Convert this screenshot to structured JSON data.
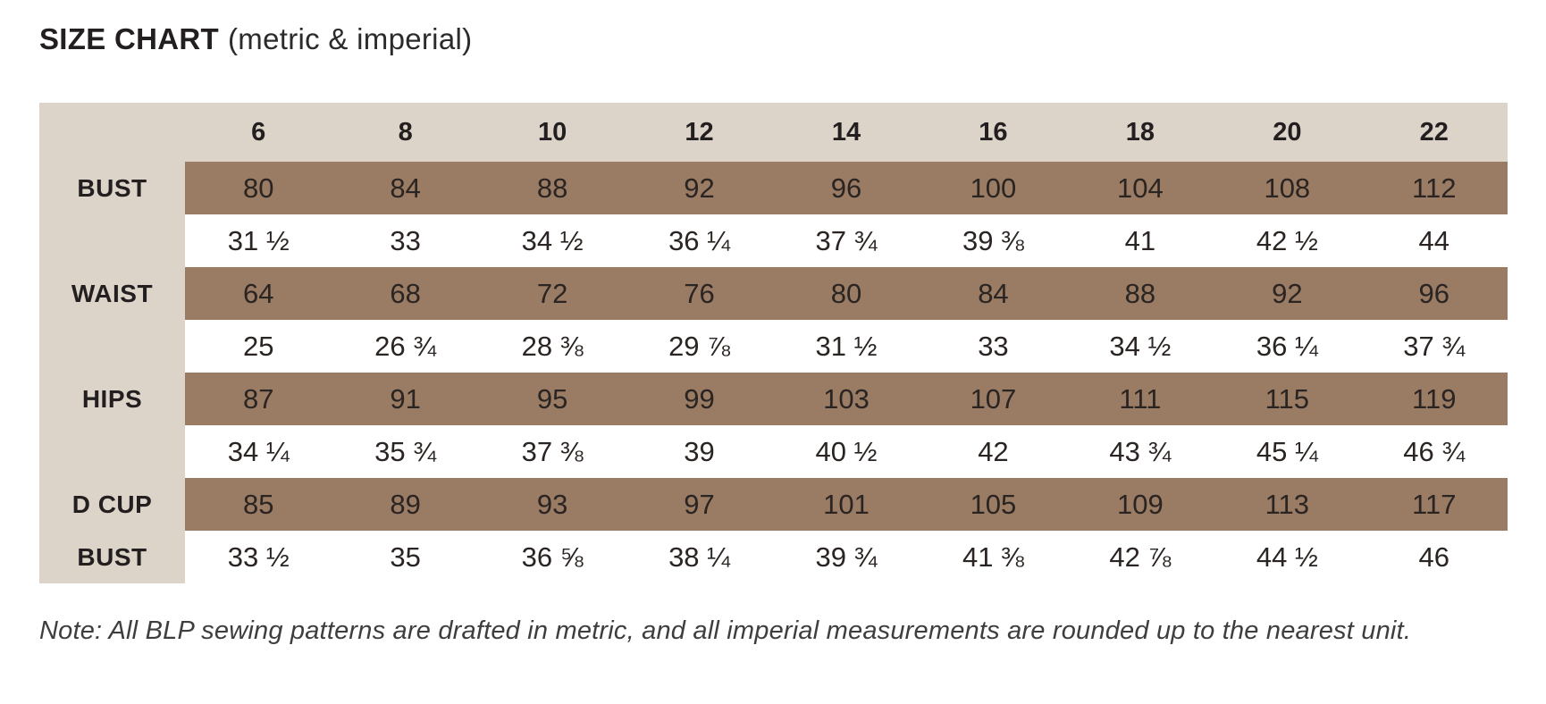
{
  "title": {
    "main": "SIZE CHART",
    "suffix": "(metric & imperial)"
  },
  "table": {
    "corner_label": "",
    "sizes": [
      "6",
      "8",
      "10",
      "12",
      "14",
      "16",
      "18",
      "20",
      "22"
    ],
    "rows": [
      {
        "label": "BUST",
        "unit": "metric",
        "values": [
          "80",
          "84",
          "88",
          "92",
          "96",
          "100",
          "104",
          "108",
          "112"
        ]
      },
      {
        "label": "",
        "unit": "imperial",
        "values": [
          "31 ½",
          "33",
          "34 ½",
          "36 ¼",
          "37 ¾",
          "39 ⅜",
          "41",
          "42 ½",
          "44"
        ]
      },
      {
        "label": "WAIST",
        "unit": "metric",
        "values": [
          "64",
          "68",
          "72",
          "76",
          "80",
          "84",
          "88",
          "92",
          "96"
        ]
      },
      {
        "label": "",
        "unit": "imperial",
        "values": [
          "25",
          "26 ¾",
          "28 ⅜",
          "29 ⅞",
          "31 ½",
          "33",
          "34 ½",
          "36 ¼",
          "37 ¾"
        ]
      },
      {
        "label": "HIPS",
        "unit": "metric",
        "values": [
          "87",
          "91",
          "95",
          "99",
          "103",
          "107",
          "111",
          "115",
          "119"
        ]
      },
      {
        "label": "",
        "unit": "imperial",
        "values": [
          "34 ¼",
          "35 ¾",
          "37 ⅜",
          "39",
          "40 ½",
          "42",
          "43 ¾",
          "45 ¼",
          "46 ¾"
        ]
      },
      {
        "label": "D CUP",
        "unit": "metric",
        "values": [
          "85",
          "89",
          "93",
          "97",
          "101",
          "105",
          "109",
          "113",
          "117"
        ]
      },
      {
        "label": "BUST",
        "unit": "imperial",
        "values": [
          "33 ½",
          "35",
          "36 ⅝",
          "38 ¼",
          "39 ¾",
          "41 ⅜",
          "42 ⅞",
          "44 ½",
          "46"
        ]
      }
    ]
  },
  "note": "Note: All BLP sewing patterns are drafted in metric, and all imperial measurements are rounded up to the nearest unit.",
  "colors": {
    "beige": "#dcd4c8",
    "brown": "#9a7b63",
    "text": "#231f20",
    "cell-text": "#2a2422",
    "note-text": "#3e3e3e"
  }
}
